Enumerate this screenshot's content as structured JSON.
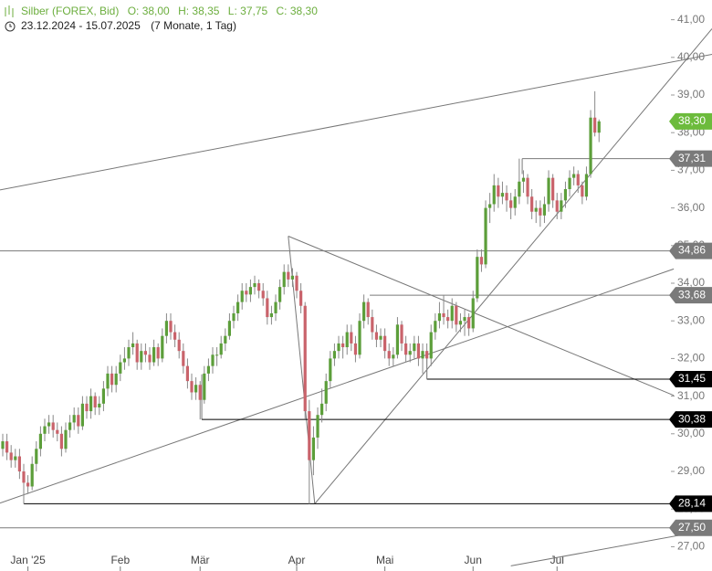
{
  "chart_data": {
    "type": "candlestick",
    "title": "Silber (FOREX, Bid)",
    "quote": [
      "O: 38,00",
      "H: 38,35",
      "L: 37,75",
      "C: 38,30"
    ],
    "range": "23.12.2024 - 15.07.2025",
    "period": "(7 Monate, 1 Tag)",
    "up_color": "#5c9e3a",
    "down_color": "#c9636b",
    "xlim": [
      -0.65,
      168.9
    ],
    "ylim": [
      26.5,
      41.5
    ],
    "xticks": [
      {
        "value": 6,
        "label": "Jan '25"
      },
      {
        "value": 28,
        "label": "Feb"
      },
      {
        "value": 47,
        "label": "Mär"
      },
      {
        "value": 70,
        "label": "Apr"
      },
      {
        "value": 91,
        "label": "Mai"
      },
      {
        "value": 112,
        "label": "Jun"
      },
      {
        "value": 132,
        "label": "Jul"
      }
    ],
    "yticks": [
      {
        "value": 27,
        "label": "27,00"
      },
      {
        "value": 28,
        "label": "28,00"
      },
      {
        "value": 29,
        "label": "29,00"
      },
      {
        "value": 30,
        "label": "30,00"
      },
      {
        "value": 31,
        "label": "31,00"
      },
      {
        "value": 32,
        "label": "32,00"
      },
      {
        "value": 33,
        "label": "33,00"
      },
      {
        "value": 34,
        "label": "34,00"
      },
      {
        "value": 35,
        "label": "35,00"
      },
      {
        "value": 36,
        "label": "36,00"
      },
      {
        "value": 37,
        "label": "37,00"
      },
      {
        "value": 38,
        "label": "38,00"
      },
      {
        "value": 39,
        "label": "39,00"
      },
      {
        "value": 40,
        "label": "40,00"
      },
      {
        "value": 41,
        "label": "41,00"
      }
    ],
    "ohlc": [
      [
        29.6,
        30.0,
        29.4,
        29.8
      ],
      [
        29.8,
        30.0,
        29.3,
        29.5
      ],
      [
        29.5,
        29.7,
        29.1,
        29.3
      ],
      [
        29.3,
        29.6,
        29.1,
        29.4
      ],
      [
        29.4,
        29.6,
        28.8,
        29.0
      ],
      [
        29.0,
        29.2,
        28.14,
        28.7
      ],
      [
        28.7,
        28.9,
        28.4,
        28.6
      ],
      [
        28.6,
        29.4,
        28.5,
        29.2
      ],
      [
        29.2,
        29.8,
        29.0,
        29.6
      ],
      [
        29.6,
        30.2,
        29.4,
        30.0
      ],
      [
        30.0,
        30.4,
        29.8,
        30.2
      ],
      [
        30.2,
        30.5,
        30.0,
        30.3
      ],
      [
        30.3,
        30.5,
        29.9,
        30.1
      ],
      [
        30.1,
        30.3,
        29.8,
        30.0
      ],
      [
        30.0,
        30.2,
        29.4,
        29.6
      ],
      [
        29.6,
        30.3,
        29.5,
        30.1
      ],
      [
        30.1,
        30.5,
        29.9,
        30.3
      ],
      [
        30.3,
        30.7,
        30.1,
        30.5
      ],
      [
        30.5,
        30.7,
        30.0,
        30.2
      ],
      [
        30.2,
        31.0,
        30.1,
        30.8
      ],
      [
        30.8,
        31.0,
        30.4,
        30.6
      ],
      [
        30.6,
        31.2,
        30.4,
        31.0
      ],
      [
        31.0,
        31.1,
        30.5,
        30.7
      ],
      [
        30.7,
        31.0,
        30.5,
        30.8
      ],
      [
        30.8,
        31.4,
        30.6,
        31.2
      ],
      [
        31.2,
        31.8,
        31.0,
        31.6
      ],
      [
        31.6,
        31.8,
        31.1,
        31.3
      ],
      [
        31.3,
        31.8,
        31.1,
        31.6
      ],
      [
        31.6,
        32.1,
        31.4,
        31.9
      ],
      [
        31.9,
        32.3,
        31.7,
        32.0
      ],
      [
        32.0,
        32.5,
        31.8,
        32.3
      ],
      [
        32.3,
        32.7,
        32.1,
        32.4
      ],
      [
        32.4,
        32.5,
        31.7,
        31.9
      ],
      [
        31.9,
        32.4,
        31.7,
        32.2
      ],
      [
        32.2,
        32.4,
        31.9,
        32.1
      ],
      [
        32.1,
        32.3,
        31.7,
        31.9
      ],
      [
        31.9,
        32.5,
        31.8,
        32.3
      ],
      [
        32.3,
        32.4,
        31.8,
        32.0
      ],
      [
        32.0,
        32.8,
        31.9,
        32.6
      ],
      [
        32.6,
        33.2,
        32.4,
        33.0
      ],
      [
        33.0,
        33.2,
        32.5,
        32.7
      ],
      [
        32.7,
        32.9,
        32.3,
        32.5
      ],
      [
        32.5,
        32.7,
        32.0,
        32.2
      ],
      [
        32.2,
        32.4,
        31.6,
        31.8
      ],
      [
        31.8,
        32.0,
        31.2,
        31.4
      ],
      [
        31.4,
        31.6,
        30.9,
        31.1
      ],
      [
        31.1,
        31.5,
        30.9,
        31.3
      ],
      [
        31.3,
        31.4,
        30.38,
        30.9
      ],
      [
        30.9,
        31.8,
        30.8,
        31.6
      ],
      [
        31.6,
        32.0,
        31.4,
        31.8
      ],
      [
        31.8,
        32.3,
        31.6,
        32.1
      ],
      [
        32.1,
        32.3,
        31.8,
        32.1
      ],
      [
        32.1,
        32.6,
        32.0,
        32.4
      ],
      [
        32.4,
        32.8,
        32.2,
        32.6
      ],
      [
        32.6,
        33.2,
        32.5,
        33.0
      ],
      [
        33.0,
        33.4,
        32.8,
        33.2
      ],
      [
        33.2,
        33.7,
        33.0,
        33.5
      ],
      [
        33.5,
        34.0,
        33.3,
        33.8
      ],
      [
        33.8,
        34.0,
        33.5,
        33.7
      ],
      [
        33.7,
        34.1,
        33.5,
        33.9
      ],
      [
        33.9,
        34.2,
        33.7,
        34.0
      ],
      [
        34.0,
        34.1,
        33.6,
        33.8
      ],
      [
        33.8,
        34.0,
        33.4,
        33.6
      ],
      [
        33.6,
        33.8,
        32.9,
        33.1
      ],
      [
        33.1,
        33.4,
        32.9,
        33.2
      ],
      [
        33.2,
        33.7,
        33.0,
        33.5
      ],
      [
        33.5,
        34.1,
        33.3,
        33.9
      ],
      [
        33.9,
        34.5,
        33.7,
        34.3
      ],
      [
        34.3,
        34.5,
        33.9,
        34.1
      ],
      [
        34.1,
        34.4,
        33.9,
        34.2
      ],
      [
        34.2,
        34.3,
        33.6,
        33.8
      ],
      [
        33.8,
        34.0,
        33.2,
        33.4
      ],
      [
        33.4,
        33.5,
        30.4,
        30.6
      ],
      [
        30.6,
        30.9,
        28.14,
        29.3
      ],
      [
        29.3,
        30.2,
        28.9,
        29.9
      ],
      [
        29.9,
        30.7,
        29.6,
        30.5
      ],
      [
        30.5,
        31.2,
        30.3,
        30.8
      ],
      [
        30.8,
        31.6,
        30.6,
        31.4
      ],
      [
        31.4,
        32.2,
        31.2,
        32.0
      ],
      [
        32.0,
        32.4,
        31.8,
        32.2
      ],
      [
        32.2,
        32.6,
        32.0,
        32.4
      ],
      [
        32.4,
        32.6,
        32.0,
        32.3
      ],
      [
        32.3,
        32.9,
        32.1,
        32.7
      ],
      [
        32.7,
        32.9,
        32.2,
        32.4
      ],
      [
        32.4,
        32.6,
        31.9,
        32.1
      ],
      [
        32.1,
        33.2,
        32.0,
        33.0
      ],
      [
        33.0,
        33.7,
        32.8,
        33.5
      ],
      [
        33.5,
        33.6,
        32.9,
        33.1
      ],
      [
        33.1,
        33.3,
        32.5,
        32.7
      ],
      [
        32.7,
        32.9,
        32.3,
        32.5
      ],
      [
        32.5,
        32.8,
        32.3,
        32.6
      ],
      [
        32.6,
        32.8,
        32.0,
        32.2
      ],
      [
        32.2,
        32.4,
        31.8,
        32.0
      ],
      [
        32.0,
        32.3,
        31.8,
        32.1
      ],
      [
        32.1,
        33.1,
        32.0,
        32.9
      ],
      [
        32.9,
        33.0,
        32.2,
        32.4
      ],
      [
        32.4,
        32.6,
        31.9,
        32.1
      ],
      [
        32.1,
        32.4,
        31.9,
        32.2
      ],
      [
        32.2,
        32.6,
        32.0,
        32.4
      ],
      [
        32.4,
        32.6,
        31.8,
        32.0
      ],
      [
        32.0,
        32.4,
        31.6,
        32.2
      ],
      [
        32.2,
        32.4,
        31.45,
        32.0
      ],
      [
        32.0,
        32.9,
        31.8,
        32.7
      ],
      [
        32.7,
        33.2,
        32.5,
        33.0
      ],
      [
        33.0,
        33.5,
        32.8,
        33.2
      ],
      [
        33.2,
        33.68,
        32.9,
        33.1
      ],
      [
        33.1,
        33.3,
        32.8,
        33.0
      ],
      [
        33.0,
        33.6,
        32.8,
        33.4
      ],
      [
        33.4,
        33.5,
        32.7,
        32.9
      ],
      [
        32.9,
        33.2,
        32.7,
        33.0
      ],
      [
        33.0,
        33.3,
        32.6,
        33.1
      ],
      [
        33.1,
        33.2,
        32.6,
        32.8
      ],
      [
        32.8,
        33.8,
        32.7,
        33.6
      ],
      [
        33.6,
        34.9,
        33.5,
        34.7
      ],
      [
        34.7,
        34.9,
        34.3,
        34.5
      ],
      [
        34.5,
        36.2,
        34.4,
        36.0
      ],
      [
        36.0,
        36.4,
        35.6,
        36.1
      ],
      [
        36.1,
        36.9,
        35.9,
        36.6
      ],
      [
        36.6,
        36.8,
        36.0,
        36.3
      ],
      [
        36.3,
        36.7,
        36.1,
        36.4
      ],
      [
        36.4,
        36.6,
        35.9,
        36.2
      ],
      [
        36.2,
        36.4,
        35.7,
        36.0
      ],
      [
        36.0,
        36.5,
        35.8,
        36.3
      ],
      [
        36.3,
        37.31,
        36.1,
        36.7
      ],
      [
        36.7,
        37.0,
        36.4,
        36.8
      ],
      [
        36.8,
        36.9,
        36.1,
        36.3
      ],
      [
        36.3,
        36.5,
        35.7,
        35.9
      ],
      [
        35.9,
        36.2,
        35.6,
        36.0
      ],
      [
        36.0,
        36.2,
        35.5,
        35.8
      ],
      [
        35.8,
        36.3,
        35.6,
        36.1
      ],
      [
        36.1,
        37.0,
        35.9,
        36.8
      ],
      [
        36.8,
        36.9,
        36.0,
        36.2
      ],
      [
        36.2,
        36.4,
        35.7,
        35.9
      ],
      [
        35.9,
        36.4,
        35.7,
        36.2
      ],
      [
        36.2,
        36.7,
        36.0,
        36.5
      ],
      [
        36.5,
        37.0,
        36.3,
        36.8
      ],
      [
        36.8,
        37.1,
        36.6,
        36.9
      ],
      [
        36.9,
        37.0,
        36.4,
        36.6
      ],
      [
        36.6,
        36.7,
        36.1,
        36.3
      ],
      [
        36.3,
        37.1,
        36.2,
        36.9
      ],
      [
        36.9,
        38.6,
        36.8,
        38.4
      ],
      [
        38.4,
        39.1,
        37.9,
        38.0
      ],
      [
        38.0,
        38.35,
        37.75,
        38.3
      ]
    ],
    "levels": [
      {
        "value": 37.31,
        "label": "37,31",
        "from": 123.7,
        "color": "#7a7a7a"
      },
      {
        "value": 34.86,
        "label": "34,86",
        "from": -0.65,
        "color": "#7a7a7a"
      },
      {
        "value": 33.68,
        "label": "33,68",
        "from": 87.4,
        "color": "#7a7a7a"
      },
      {
        "value": 31.45,
        "label": "31,45",
        "from": 101,
        "color": "#000000"
      },
      {
        "value": 30.38,
        "label": "30,38",
        "from": 47.4,
        "color": "#000000"
      },
      {
        "value": 28.14,
        "label": "28,14",
        "from": 5,
        "color": "#000000"
      },
      {
        "value": 27.5,
        "label": "27,50",
        "from": -0.65,
        "color": "#7a7a7a"
      }
    ],
    "last": {
      "value": 38.3,
      "label": "38,30",
      "color": "#6cbb3c"
    },
    "lines": [
      [
        [
          -0.65,
          36.48
        ],
        [
          168.9,
          40.08
        ]
      ],
      [
        [
          74.3,
          28.14
        ],
        [
          168.9,
          40.76
        ]
      ],
      [
        [
          -0.65,
          28.16
        ],
        [
          159.8,
          34.38
        ]
      ],
      [
        [
          68,
          35.25
        ],
        [
          159.8,
          31.02
        ]
      ],
      [
        [
          68,
          35.25
        ],
        [
          74.3,
          28.14
        ]
      ],
      [
        [
          121,
          26.49
        ],
        [
          168.9,
          27.46
        ]
      ],
      [
        [
          101,
          32.2
        ],
        [
          101,
          31.45
        ]
      ],
      [
        [
          47.4,
          31.58
        ],
        [
          47.4,
          30.38
        ]
      ],
      [
        [
          123.7,
          37.31
        ],
        [
          123.7,
          36.9
        ]
      ]
    ]
  }
}
